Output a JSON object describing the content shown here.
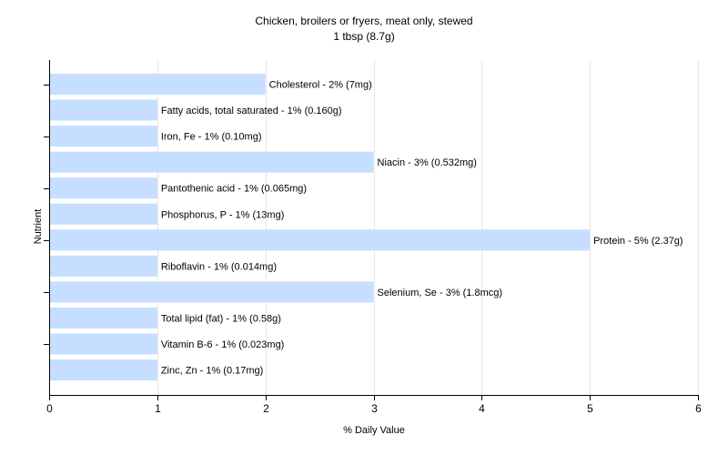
{
  "chart_data": {
    "type": "bar",
    "orientation": "horizontal",
    "title": "Chicken, broilers or fryers, meat only, stewed",
    "subtitle": "1 tbsp (8.7g)",
    "xlabel": "% Daily Value",
    "ylabel": "Nutrient",
    "xlim": [
      0,
      6
    ],
    "xticks": [
      0,
      1,
      2,
      3,
      4,
      5,
      6
    ],
    "grid": "vertical",
    "categories": [
      "Cholesterol",
      "Fatty acids, total saturated",
      "Iron, Fe",
      "Niacin",
      "Pantothenic acid",
      "Phosphorus, P",
      "Protein",
      "Riboflavin",
      "Selenium, Se",
      "Total lipid (fat)",
      "Vitamin B-6",
      "Zinc, Zn"
    ],
    "values": [
      2,
      1,
      1,
      3,
      1,
      1,
      5,
      1,
      3,
      1,
      1,
      1
    ],
    "labels": [
      "Cholesterol - 2% (7mg)",
      "Fatty acids, total saturated - 1% (0.160g)",
      "Iron, Fe - 1% (0.10mg)",
      "Niacin - 3% (0.532mg)",
      "Pantothenic acid - 1% (0.065mg)",
      "Phosphorus, P - 1% (13mg)",
      "Protein - 5% (2.37g)",
      "Riboflavin - 1% (0.014mg)",
      "Selenium, Se - 3% (1.8mcg)",
      "Total lipid (fat) - 1% (0.58g)",
      "Vitamin B-6 - 1% (0.023mg)",
      "Zinc, Zn - 1% (0.17mg)"
    ],
    "colors": {
      "bar": "#c6deff",
      "grid": "#e6e6e6",
      "axis": "#000000"
    }
  }
}
